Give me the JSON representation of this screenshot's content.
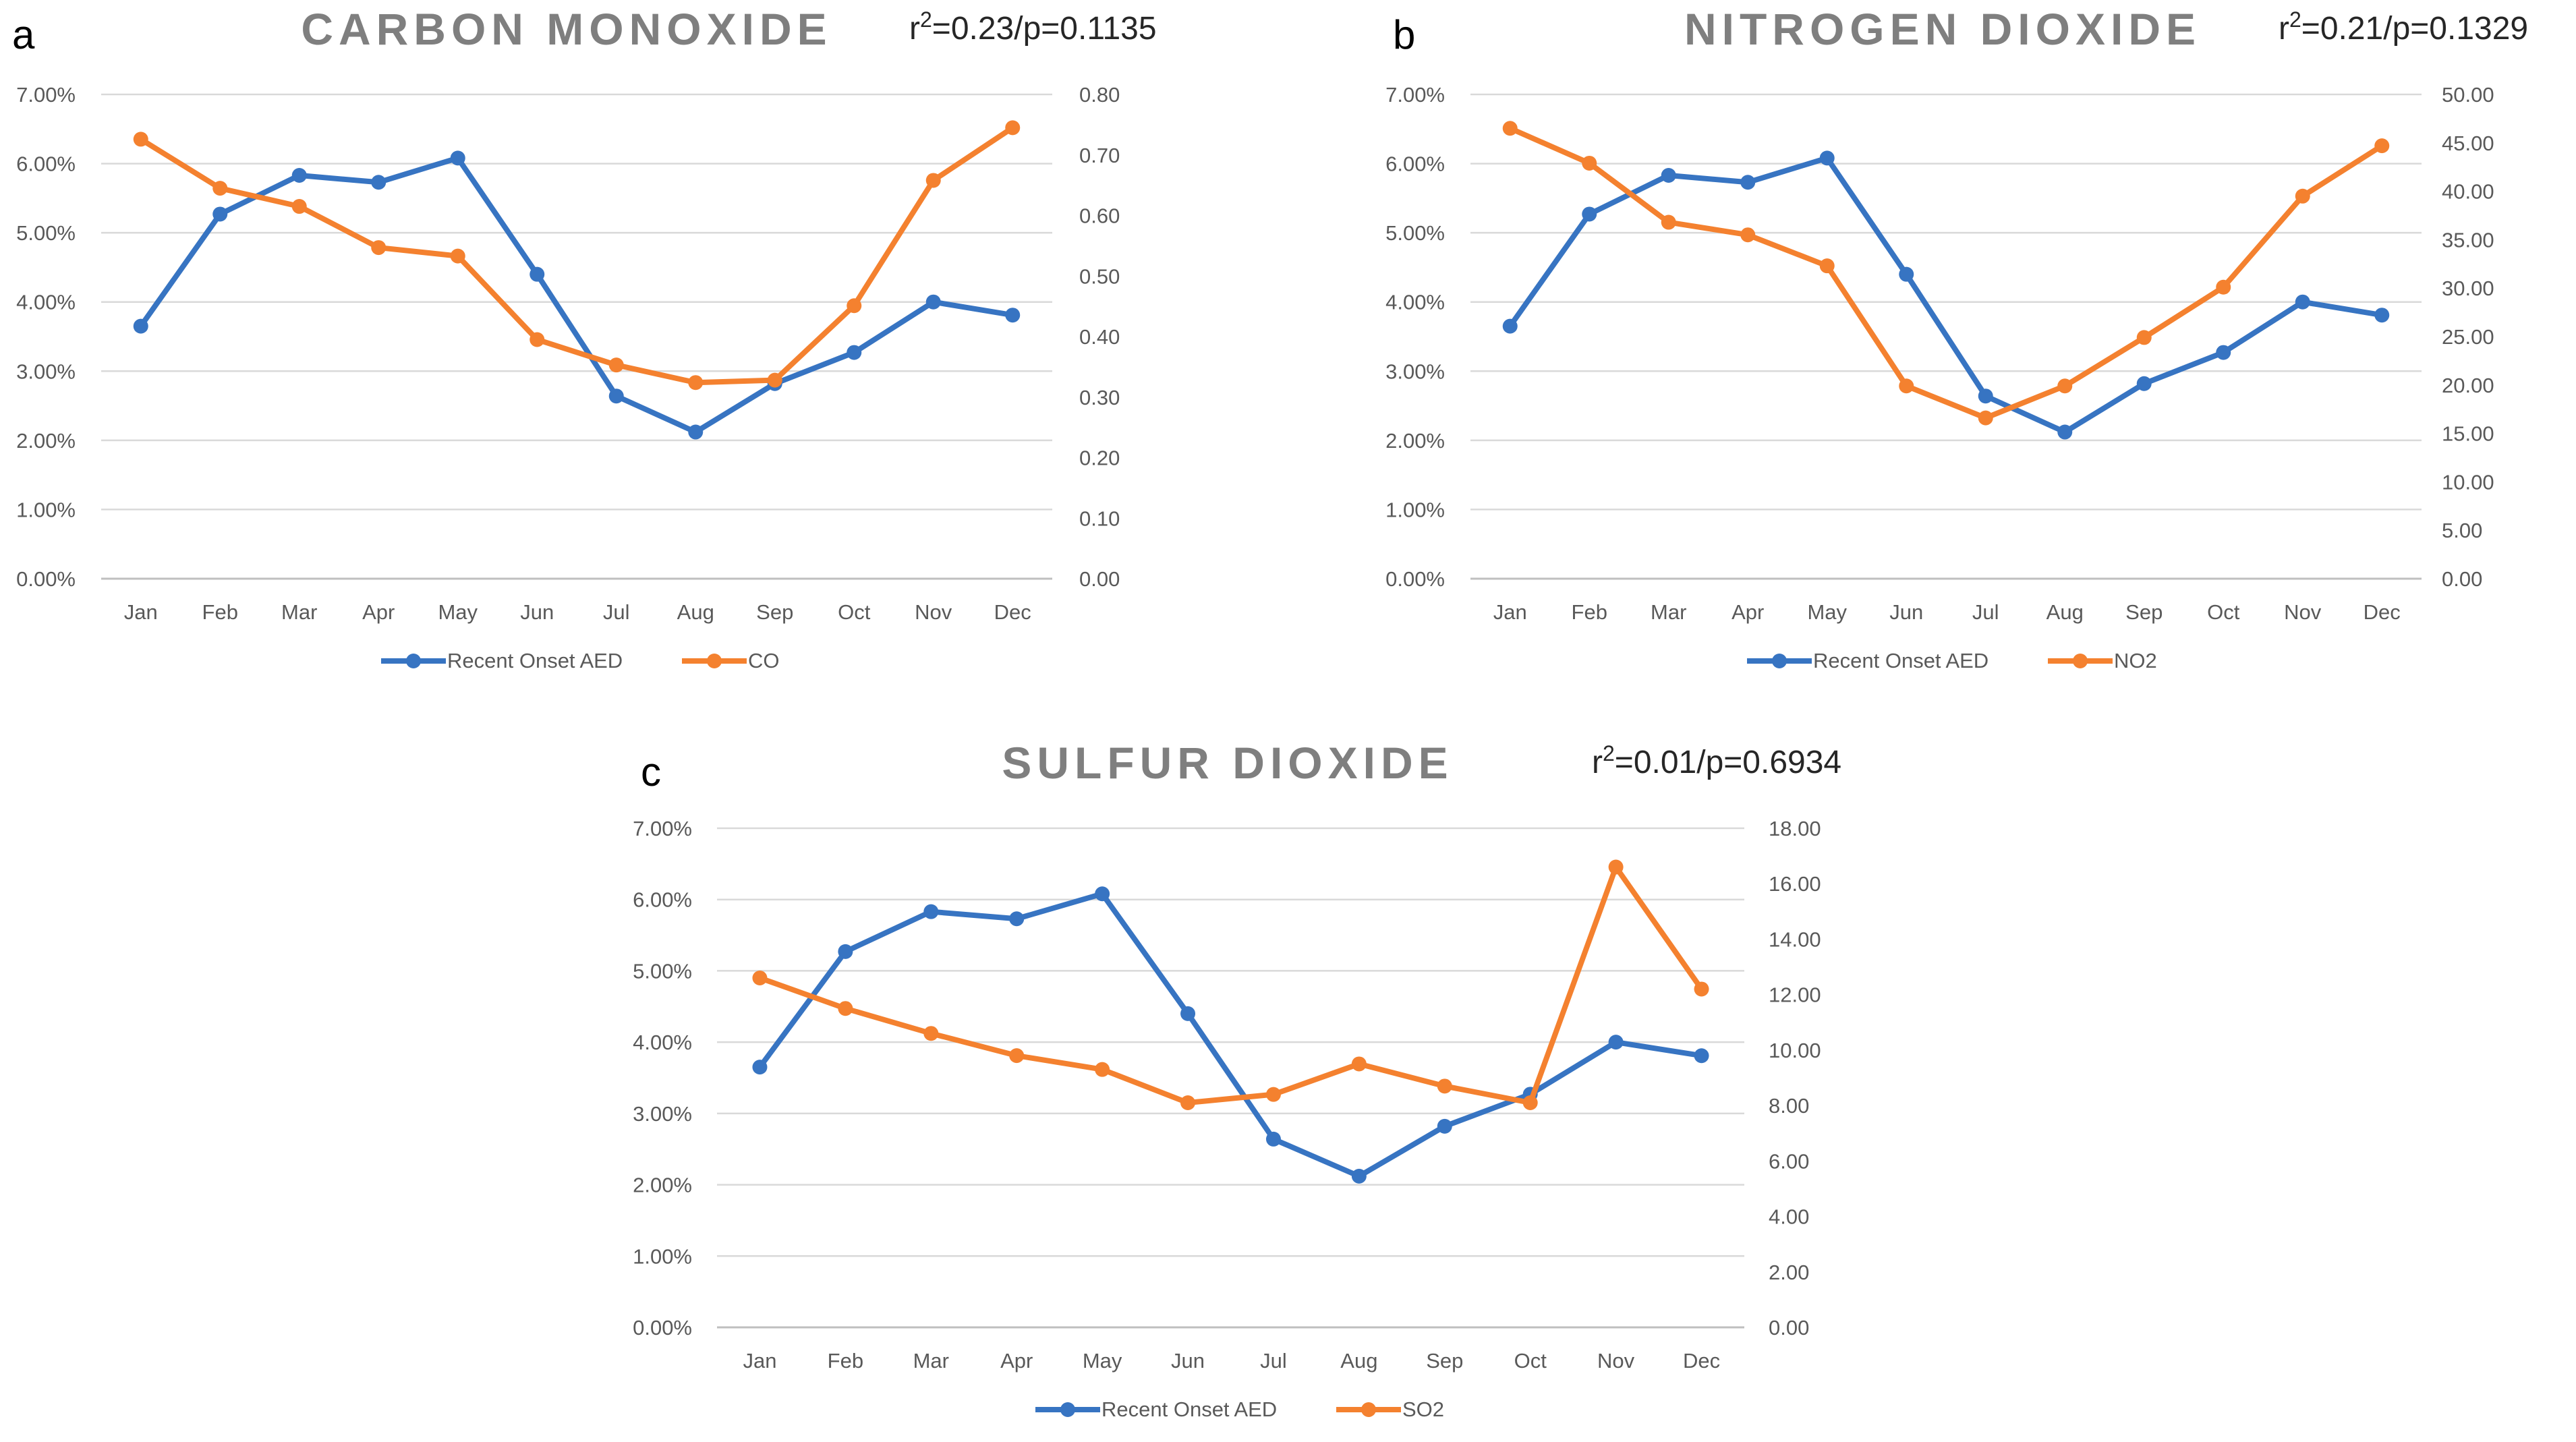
{
  "colors": {
    "aed": "#3774c2",
    "pollutant": "#f4812f",
    "grid": "#d9d9d9",
    "axis": "#bfbfbf",
    "text": "#595959",
    "title": "#7f7f7f"
  },
  "chart_data": [
    {
      "type": "line",
      "panel_label": "a",
      "title": "CARBON MONOXIDE",
      "stat": {
        "r2_prefix": "r",
        "r2_sup": "2",
        "rest": "=0.23/p=0.1135"
      },
      "categories": [
        "Jan",
        "Feb",
        "Mar",
        "Apr",
        "May",
        "Jun",
        "Jul",
        "Aug",
        "Sep",
        "Oct",
        "Nov",
        "Dec"
      ],
      "y_left": {
        "range": [
          0,
          7
        ],
        "ticks": [
          "0.00%",
          "1.00%",
          "2.00%",
          "3.00%",
          "4.00%",
          "5.00%",
          "6.00%",
          "7.00%"
        ]
      },
      "y_right": {
        "range": [
          0,
          0.8
        ],
        "ticks": [
          "0.00",
          "0.10",
          "0.20",
          "0.30",
          "0.40",
          "0.50",
          "0.60",
          "0.70",
          "0.80"
        ]
      },
      "series": [
        {
          "name": "Recent Onset AED",
          "axis": "left",
          "values": [
            3.65,
            5.27,
            5.83,
            5.73,
            6.08,
            4.4,
            2.64,
            2.12,
            2.82,
            3.27,
            4.0,
            3.81
          ]
        },
        {
          "name": "CO",
          "axis": "right",
          "values": [
            0.726,
            0.645,
            0.615,
            0.547,
            0.533,
            0.395,
            0.353,
            0.324,
            0.328,
            0.451,
            0.658,
            0.745
          ]
        }
      ],
      "legend": [
        "Recent Onset AED",
        "CO"
      ],
      "legend_position": "bottom"
    },
    {
      "type": "line",
      "panel_label": "b",
      "title": "NITROGEN DIOXIDE",
      "stat": {
        "r2_prefix": "r",
        "r2_sup": "2",
        "rest": "=0.21/p=0.1329"
      },
      "categories": [
        "Jan",
        "Feb",
        "Mar",
        "Apr",
        "May",
        "Jun",
        "Jul",
        "Aug",
        "Sep",
        "Oct",
        "Nov",
        "Dec"
      ],
      "y_left": {
        "range": [
          0,
          7
        ],
        "ticks": [
          "0.00%",
          "1.00%",
          "2.00%",
          "3.00%",
          "4.00%",
          "5.00%",
          "6.00%",
          "7.00%"
        ]
      },
      "y_right": {
        "range": [
          0,
          50
        ],
        "ticks": [
          "0.00",
          "5.00",
          "10.00",
          "15.00",
          "20.00",
          "25.00",
          "30.00",
          "35.00",
          "40.00",
          "45.00",
          "50.00"
        ]
      },
      "series": [
        {
          "name": "Recent Onset AED",
          "axis": "left",
          "values": [
            3.65,
            5.27,
            5.83,
            5.73,
            6.08,
            4.4,
            2.64,
            2.12,
            2.82,
            3.27,
            4.0,
            3.81
          ]
        },
        {
          "name": "NO2",
          "axis": "right",
          "values": [
            46.5,
            42.9,
            36.8,
            35.5,
            32.3,
            19.9,
            16.6,
            19.9,
            24.9,
            30.1,
            39.5,
            44.7
          ]
        }
      ],
      "legend": [
        "Recent Onset AED",
        "NO2"
      ],
      "legend_position": "bottom"
    },
    {
      "type": "line",
      "panel_label": "c",
      "title": "SULFUR DIOXIDE",
      "stat": {
        "r2_prefix": "r",
        "r2_sup": "2",
        "rest": "=0.01/p=0.6934"
      },
      "categories": [
        "Jan",
        "Feb",
        "Mar",
        "Apr",
        "May",
        "Jun",
        "Jul",
        "Aug",
        "Sep",
        "Oct",
        "Nov",
        "Dec"
      ],
      "y_left": {
        "range": [
          0,
          7
        ],
        "ticks": [
          "0.00%",
          "1.00%",
          "2.00%",
          "3.00%",
          "4.00%",
          "5.00%",
          "6.00%",
          "7.00%"
        ]
      },
      "y_right": {
        "range": [
          0,
          18
        ],
        "ticks": [
          "0.00",
          "2.00",
          "4.00",
          "6.00",
          "8.00",
          "10.00",
          "12.00",
          "14.00",
          "16.00",
          "18.00"
        ]
      },
      "series": [
        {
          "name": "Recent Onset AED",
          "axis": "left",
          "values": [
            3.65,
            5.27,
            5.83,
            5.73,
            6.08,
            4.4,
            2.64,
            2.12,
            2.82,
            3.27,
            4.0,
            3.81
          ]
        },
        {
          "name": "SO2",
          "axis": "right",
          "values": [
            12.6,
            11.5,
            10.6,
            9.8,
            9.3,
            8.1,
            8.4,
            9.5,
            8.7,
            8.1,
            16.6,
            12.2
          ]
        }
      ],
      "legend": [
        "Recent Onset AED",
        "SO2"
      ],
      "legend_position": "bottom"
    }
  ]
}
